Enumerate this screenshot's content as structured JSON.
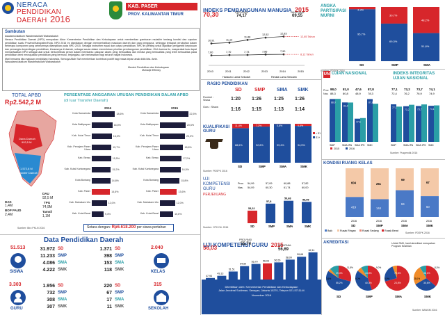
{
  "header": {
    "title_line1": "NERACA",
    "title_line2": "PENDIDIKAN",
    "title_line3": "DAERAH",
    "year": "2016",
    "kab": "KAB. PASER",
    "prov": "PROV. KALIMANTAN TIMUR"
  },
  "sambutan": {
    "title": "Sambutan",
    "greeting": "Assalamu'alaikum Warahmatullahi Wabarakatuh",
    "para1": "Neraca Pendidikan Daerah (NPD) merupakan Aktor Kementerian Pendidikan dan Kebudayaan untuk memberikan gambaran mutakhir tentang kondisi dan capaian pendidikan suatu Provinsi/Kabupaten/Kota. NPD 2016 ini disediakan dengan memperhatikan masukan daerah dan para pengguna, sehingga terdapat perubahan dalam beberapa komponen yang sebelumnya ditampilkan pada NPD 2015. Sebagai instrumen equal dan output pendidikan, NPD ini penting untuk dijadikan pengambil keputusan dan pemangku kepentingan pendidikan, khususnya di daerah, sebagai acuan dalam menentukan prioritas pembangunan pendidikan. Oleh karena itu, masyarakat luas dapat memanfaatkan NPD sebagai alat untuk berkontribusi penuh dalam membantu cakupan akses yang berkualitas dan merata yang berkualitas yang lebih berkualitas pada pendidikan demi mewujudkan pendidikan yang bermutu, terjangkau, dan berkeadilan bagi seluruh rakyat Indonesia.",
    "para2": "Mari bersama kita majukan pendidikan Indonesia. Semoga Allah Swt memberikan kontribusi positif bagi masa depan anak didik kita. Amin.",
    "closing": "Wassalamu'alaikum Warahmatullahi Wabarakatuh",
    "signature": "Menteri Pendidikan dan Kebudayaan",
    "name": "Muhadjir Effendy"
  },
  "ipm": {
    "title": "INDEKS PEMBANGUNAN MANUSIA",
    "year": "2015",
    "kab_value": "70,30",
    "prov_label": "PROVINSI",
    "prov_value": "74,17",
    "nas_label": "NASIONAL",
    "nas_value": "69,55",
    "line1_points": [
      "10,91",
      "11,13",
      "11,88",
      "12,52",
      "12,83"
    ],
    "line2_points": [
      "7,60",
      "7,70",
      "7,73",
      "7,86",
      "7,90"
    ],
    "line1_label": "12,65 Tahun",
    "line2_label": "8,12 Tahun",
    "years": [
      "2010",
      "2011",
      "2012",
      "2013",
      "2014",
      "2015"
    ],
    "legend1": "Harapan Lama Sekolah",
    "legend2": "Rerata Lama Sekolah"
  },
  "apm": {
    "title_line1": "ANGKA",
    "title_line2": "PARTISIPASI",
    "title_line3": "MURNI",
    "cats": [
      "SD",
      "SMP",
      "SMA"
    ],
    "top_vals": [
      "4,3%",
      "30,7%",
      "48,2%"
    ],
    "bot_vals": [
      "95,7%",
      "69,3%",
      "51,8%"
    ],
    "mid_vals": [
      "",
      "",
      ""
    ],
    "source": "Sumber: PDSPK 2016"
  },
  "apbd": {
    "total_label": "TOTAL APBD",
    "total_value": "Rp2.542,2 M",
    "dana_daerah_label": "Dana Daerah",
    "dana_daerah_value": "993,5 M",
    "transfer_label": "Transfer Daerah",
    "transfer_value": "1.572,8 M",
    "dau_label": "DAU",
    "dau_value": "92,5 M",
    "dak_label": "DAK",
    "dak_value": "1,4M",
    "tpg_label": "TPG",
    "tpg_value": "74,9M",
    "bop_label": "BOP PAUD",
    "bop_value": "2,4M",
    "tamsil_label": "Tamsil",
    "tamsil_value": "1,1M",
    "source": "Sumber: Biro PKLN 2016"
  },
  "persentase": {
    "title": "PERSENTASE ANGGARAN URUSAN PENDIDIKAN DALAM APBD",
    "subtitle": "(di luar Transfer Daerah)",
    "year_a": "2016",
    "year_b": "2015",
    "rows_a": [
      {
        "label": "Kota Samarinda",
        "val": "18,6%"
      },
      {
        "label": "Kota Balikpapan",
        "val": "16,5%"
      },
      {
        "label": "Kab. Kutai Timur",
        "val": "16,0%"
      },
      {
        "label": "Kab. Penajam Paser Utara",
        "val": "15,7%"
      },
      {
        "label": "Kab. Berau",
        "val": "15,5%"
      },
      {
        "label": "Kab. Kutai Kartanegara",
        "val": "15,2%"
      },
      {
        "label": "Kota Bontang",
        "val": "14,8%"
      },
      {
        "label": "Kab. Paser",
        "val": "14,6%"
      },
      {
        "label": "Kab. Mahakam Ulu",
        "val": "12,0%"
      },
      {
        "label": "Kab. Kutai Barat",
        "val": "9,4%"
      }
    ],
    "rows_b": [
      {
        "label": "Kota Samarinda",
        "val": "22,5%"
      },
      {
        "label": "Kota Balikpapan",
        "val": "20,5%"
      },
      {
        "label": "Kab. Kutai Timur",
        "val": "20,0%"
      },
      {
        "label": "Kab. Penajam Paser Utara",
        "val": "18,6%"
      },
      {
        "label": "Kab. Berau",
        "val": "17,2%"
      },
      {
        "label": "Kab. Kutai Kartanegara",
        "val": "16,5%"
      },
      {
        "label": "Kota Bontang",
        "val": "15,8%"
      },
      {
        "label": "Kab. Paser",
        "val": "13,6%"
      },
      {
        "label": "Kab. Mahakam Ulu",
        "val": "12,0%"
      },
      {
        "label": "Kab. Kutai Barat",
        "val": "10,6%"
      }
    ],
    "setara_label": "Setara dengan:",
    "setara_value": "Rp6.618.200",
    "setara_suffix": "per siswa pertahun"
  },
  "rasio": {
    "title": "RASIO PENDIDIKAN",
    "headers": [
      "SD",
      "SMP",
      "SMA",
      "SMK"
    ],
    "row1_label": "Rombel : Siswa",
    "row1": [
      "1:20",
      "1:26",
      "1:25",
      "1:26"
    ],
    "row2_label": "Guru : Siswa",
    "row2": [
      "1:16",
      "1:15",
      "1:13",
      "1:14"
    ]
  },
  "un": {
    "title": "UJIAN NASIONAL",
    "label_a": "Prov.",
    "label_b": "Nas.",
    "prov_vals": [
      "88,0",
      "81,0",
      "47,6",
      "87,8"
    ],
    "nas_vals": [
      "88,3",
      "80,8",
      "48,9",
      "78,3"
    ],
    "cats": [
      "SMP",
      "SMA IPA",
      "SMA IPS",
      "SMK"
    ],
    "legend_a": "2015",
    "legend_b": "2016"
  },
  "iiun": {
    "title_line1": "INDEKS INTEGRITAS",
    "title_line2": "UJIAN NASIONAL",
    "prov_vals": [
      "77,1",
      "73,2",
      "73,7",
      "74,1"
    ],
    "nas_vals": [
      "72,4",
      "76,2",
      "76,9",
      "74,9"
    ],
    "cats": [
      "SMP",
      "SMA IPA",
      "SMA IPS",
      "SMK"
    ],
    "source": "Sumber: Puspendik 2016"
  },
  "kualifikasi": {
    "title": "KUALIFIKASI GURU",
    "cats": [
      "SD",
      "SMP",
      "SMA",
      "SMK"
    ],
    "top_vals": [
      "11,4%",
      "7,2%",
      "0,6%",
      "5,5%"
    ],
    "bot_vals": [
      "88,6%",
      "92,8%",
      "99,4%",
      "94,5%"
    ],
    "legend_a": "< S1",
    "legend_b": "S1+",
    "source": "Sumber: PDSPK 2016"
  },
  "ukg": {
    "title_line1": "UJI",
    "title_line2": "KOMPETENSI",
    "title_line3": "GURU",
    "subtitle": "PERJENJANG",
    "prov_label": "Prov.",
    "nas_label": "Nas.",
    "prov_vals": [
      "54,99",
      "57,09",
      "60,88",
      "57,82"
    ],
    "nas_vals": [
      "54,09",
      "60,30",
      "61,74",
      "60,00"
    ],
    "cats": [
      "SD",
      "SMP",
      "SMA",
      "SMK"
    ],
    "values": [
      "53,22",
      "57,8",
      "59,68",
      "58,95"
    ],
    "source": "Sumber: GTK Dit. 2016"
  },
  "ruang": {
    "title": "KONDISI RUANG KELAS",
    "cats": [
      "SD",
      "SMP",
      "SMA",
      "SMK"
    ],
    "good": [
      "419",
      "144",
      "84",
      "50"
    ],
    "light": [
      "604",
      "251",
      "69",
      "67"
    ],
    "heavy": [
      "",
      "",
      "",
      ""
    ],
    "legend_baik": "Baik",
    "legend_ringan": "Rusak Ringan",
    "legend_sedang": "Rusak Sedang",
    "legend_berat": "Rusak Berat",
    "years": [
      "2016",
      "2016",
      "2016",
      "2016"
    ],
    "source": "Sumber: PDSPK 2016"
  },
  "datapend": {
    "title": "Data Pendidikan Daerah",
    "siswa_total": "51.513",
    "siswa_label": "SISWA",
    "siswa_rows": [
      {
        "num": "31.972",
        "lvl": "SD"
      },
      {
        "num": "11.233",
        "lvl": "SMP"
      },
      {
        "num": "4.086",
        "lvl": "SMA"
      },
      {
        "num": "4.222",
        "lvl": "SMK"
      }
    ],
    "kelas_total": "2.040",
    "kelas_label": "KELAS",
    "kelas_rows": [
      {
        "num": "1.371",
        "lvl": "SD"
      },
      {
        "num": "398",
        "lvl": "SMP"
      },
      {
        "num": "153",
        "lvl": "SMA"
      },
      {
        "num": "118",
        "lvl": "SMK"
      }
    ],
    "guru_total": "3.303",
    "guru_label": "GURU",
    "guru_rows": [
      {
        "num": "1.956",
        "lvl": "SD"
      },
      {
        "num": "732",
        "lvl": "SMP"
      },
      {
        "num": "308",
        "lvl": "SMA"
      },
      {
        "num": "307",
        "lvl": "SMK"
      }
    ],
    "sekolah_total": "315",
    "sekolah_label": "SEKOLAH",
    "sekolah_rows": [
      {
        "num": "220",
        "lvl": "SD"
      },
      {
        "num": "67",
        "lvl": "SMP"
      },
      {
        "num": "17",
        "lvl": "SMA"
      },
      {
        "num": "11",
        "lvl": "SMK"
      }
    ]
  },
  "ukg2": {
    "title": "UJI KOMPETENSI GURU",
    "year": "2015",
    "kab_value": "56,03",
    "prov_label": "PROVINSI",
    "prov_value": "55,74",
    "nas_label": "NASIONAL",
    "nas_value": "56,69",
    "cats": [
      "Kab. Mahakam Ulu",
      "Kab. Kutai Barat",
      "Kab. Kutai Kartanegara",
      "Kab. Berau",
      "Kab. Kutai Timur",
      "Kab. Paser",
      "Kota Samarinda",
      "Kab. Penajam Paser Utara",
      "Kota Balikpapan",
      "Kota Bontang"
    ],
    "values": [
      "47,93",
      "49,13",
      "51,51",
      "54,50",
      "55,70",
      "56,03",
      "56,55",
      "58,09",
      "59,68",
      "62,11"
    ],
    "highlight_index": 5,
    "source": "Sumber: GTK Dit. 2015"
  },
  "akreditasi": {
    "title": "AKREDITASI",
    "note": "Untuk SMK, hasil akreditasi merupakan Program Keahlian",
    "cats": [
      "SD",
      "SMP",
      "SMA",
      "SMK"
    ],
    "a_vals": [
      "29,4%",
      "44,8%",
      "70,6%",
      "36,1%"
    ],
    "b_vals": [
      "55,2%",
      "40,3%",
      "23,5%",
      "30,6%"
    ],
    "c_vals": [
      "3,6%",
      "6,0%",
      "5,9%",
      "25,0%"
    ],
    "tt_vals": [
      "11,8%",
      "9,0%",
      "",
      "8,3%"
    ],
    "source": "Sumber: BANSM 2016"
  },
  "footer": {
    "line1": "Diterbitkan oleh: Kementerian Pendidikan dan Kebudayaan",
    "line2": "Jalan Jenderal Sudirman, Senayan, Jakarta 10270, Telepon 021-5711144",
    "line3": "November 2016"
  },
  "colors": {
    "red": "#d7262b",
    "blue": "#1f4e9d",
    "teal": "#2a9ea6",
    "light_red": "#f4a6a2"
  }
}
